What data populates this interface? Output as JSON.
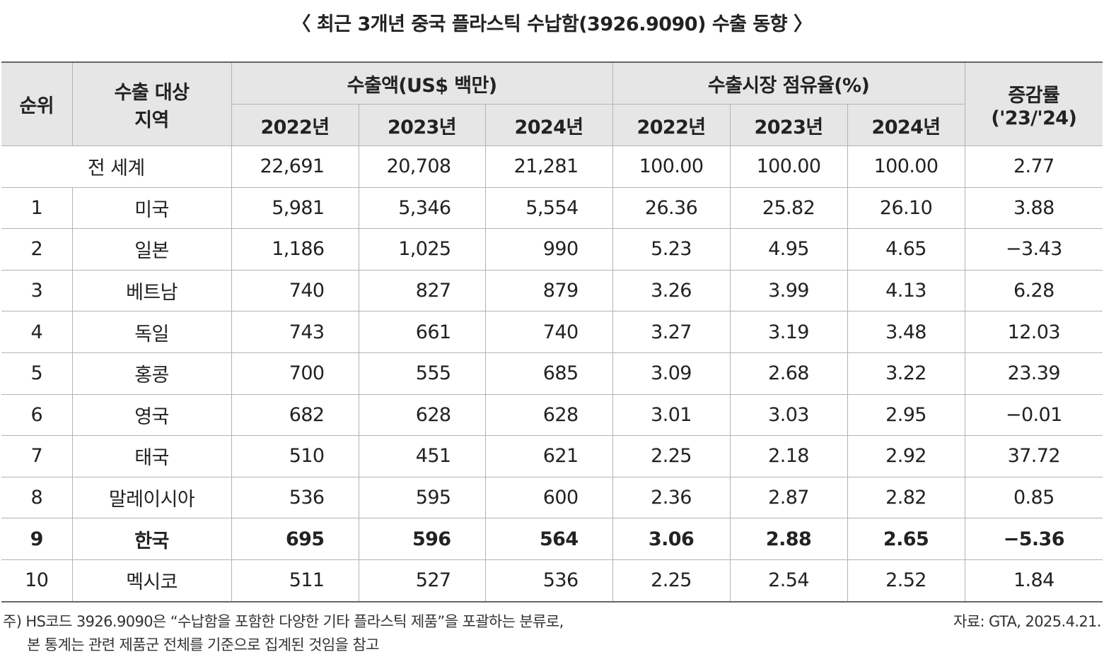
{
  "title": "〈 최근 3개년 중국 플라스틱 수납함(3926.9090) 수출 동향 〉",
  "header": {
    "rank": "순위",
    "region_line1": "수출 대상",
    "region_line2": "지역",
    "amount_group": "수출액(US$ 백만)",
    "share_group": "수출시장 점유율(%)",
    "growth_line1": "증감률",
    "growth_line2": "('23/'24)",
    "years": [
      "2022년",
      "2023년",
      "2024년"
    ]
  },
  "world": {
    "label": "전 세계",
    "amount": [
      "22,691",
      "20,708",
      "21,281"
    ],
    "share": [
      "100.00",
      "100.00",
      "100.00"
    ],
    "growth": "2.77"
  },
  "rows": [
    {
      "rank": "1",
      "region": "미국",
      "amount": [
        "5,981",
        "5,346",
        "5,554"
      ],
      "share": [
        "26.36",
        "25.82",
        "26.10"
      ],
      "growth": "3.88"
    },
    {
      "rank": "2",
      "region": "일본",
      "amount": [
        "1,186",
        "1,025",
        "990"
      ],
      "share": [
        "5.23",
        "4.95",
        "4.65"
      ],
      "growth": "−3.43"
    },
    {
      "rank": "3",
      "region": "베트남",
      "amount": [
        "740",
        "827",
        "879"
      ],
      "share": [
        "3.26",
        "3.99",
        "4.13"
      ],
      "growth": "6.28"
    },
    {
      "rank": "4",
      "region": "독일",
      "amount": [
        "743",
        "661",
        "740"
      ],
      "share": [
        "3.27",
        "3.19",
        "3.48"
      ],
      "growth": "12.03"
    },
    {
      "rank": "5",
      "region": "홍콩",
      "amount": [
        "700",
        "555",
        "685"
      ],
      "share": [
        "3.09",
        "2.68",
        "3.22"
      ],
      "growth": "23.39"
    },
    {
      "rank": "6",
      "region": "영국",
      "amount": [
        "682",
        "628",
        "628"
      ],
      "share": [
        "3.01",
        "3.03",
        "2.95"
      ],
      "growth": "−0.01"
    },
    {
      "rank": "7",
      "region": "태국",
      "amount": [
        "510",
        "451",
        "621"
      ],
      "share": [
        "2.25",
        "2.18",
        "2.92"
      ],
      "growth": "37.72"
    },
    {
      "rank": "8",
      "region": "말레이시아",
      "amount": [
        "536",
        "595",
        "600"
      ],
      "share": [
        "2.36",
        "2.87",
        "2.82"
      ],
      "growth": "0.85"
    },
    {
      "rank": "9",
      "region": "한국",
      "amount": [
        "695",
        "596",
        "564"
      ],
      "share": [
        "3.06",
        "2.88",
        "2.65"
      ],
      "growth": "−5.36",
      "highlight": true
    },
    {
      "rank": "10",
      "region": "멕시코",
      "amount": [
        "511",
        "527",
        "536"
      ],
      "share": [
        "2.25",
        "2.54",
        "2.52"
      ],
      "growth": "1.84"
    }
  ],
  "note": {
    "line1": "주) HS코드 3926.9090은 “수납함을 포함한 다양한 기타 플라스틱 제품”을 포괄하는 분류로,",
    "line2": "본 통계는 관련 제품군 전체를 기준으로 집계된 것임을 참고"
  },
  "source": "자료: GTA, 2025.4.21."
}
